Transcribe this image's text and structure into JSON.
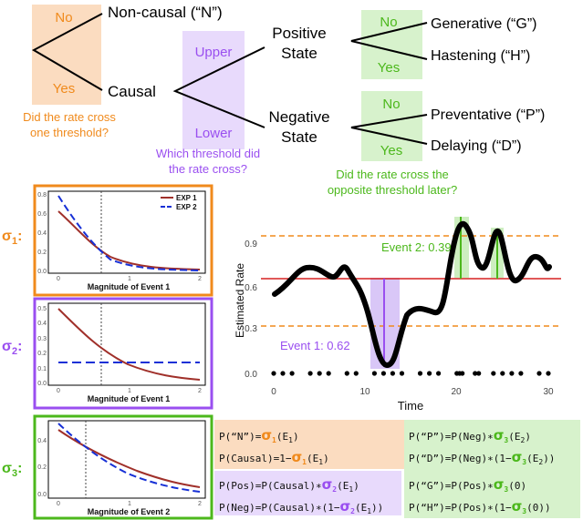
{
  "decision_tree": {
    "root": {
      "no": "No",
      "yes": "Yes",
      "question_l1": "Did the rate cross",
      "question_l2": "one threshold?"
    },
    "noncausal": "Non-causal (“N”)",
    "causal": "Causal",
    "which": {
      "upper": "Upper",
      "lower": "Lower",
      "question_l1": "Which threshold did",
      "question_l2": "the rate cross?"
    },
    "positive": {
      "l1": "Positive",
      "l2": "State"
    },
    "negative": {
      "l1": "Negative",
      "l2": "State"
    },
    "opposite": {
      "no_pos": "No",
      "yes_pos": "Yes",
      "no_neg": "No",
      "yes_neg": "Yes",
      "question_l1": "Did the rate cross the",
      "question_l2": "opposite threshold later?"
    },
    "outcomes": {
      "G": "Generative (“G”)",
      "H": "Hastening (“H”)",
      "P": "Preventative (“P”)",
      "D": "Delaying  (“D”)"
    }
  },
  "colors": {
    "orange": "#f08a1c",
    "purple": "#9a4ff0",
    "green": "#4cb81c",
    "exp1": "#a0302a",
    "exp2": "#1730d6"
  },
  "panels": [
    {
      "sigma": "σ",
      "sub": "1",
      "colon": ":",
      "xlabel": "Magnitude of Event 1",
      "legend": [
        "EXP 1",
        "EXP 2"
      ],
      "yticks": [
        "0.8",
        "0.6",
        "0.4",
        "0.2",
        "0.0"
      ],
      "xticks": [
        "0",
        "1",
        "2"
      ]
    },
    {
      "sigma": "σ",
      "sub": "2",
      "colon": ":",
      "xlabel": "Magnitude of Event 1",
      "yticks": [
        "0.5",
        "0.4",
        "0.3",
        "0.2",
        "0.1",
        "0.0"
      ],
      "xticks": [
        "0",
        "1",
        "2"
      ]
    },
    {
      "sigma": "σ",
      "sub": "3",
      "colon": ":",
      "xlabel": "Magnitude of Event 2",
      "yticks": [
        "0.4",
        "0.2",
        "0.0"
      ],
      "xticks": [
        "0",
        "1",
        "2"
      ]
    }
  ],
  "chart_data": [
    {
      "type": "line",
      "xlabel": "Magnitude of Event 1",
      "ylabel": "",
      "xlim": [
        -0.2,
        2.1
      ],
      "ylim": [
        0,
        0.85
      ],
      "vline": 0.62,
      "series": [
        {
          "name": "EXP 1",
          "x": [
            0,
            0.25,
            0.5,
            0.75,
            1,
            1.5,
            2
          ],
          "values": [
            0.62,
            0.45,
            0.32,
            0.18,
            0.09,
            0.03,
            0.01
          ]
        },
        {
          "name": "EXP 2",
          "x": [
            0,
            0.25,
            0.5,
            0.75,
            1,
            1.5,
            2
          ],
          "values": [
            0.78,
            0.52,
            0.3,
            0.12,
            0.05,
            0.01,
            0.0
          ]
        }
      ]
    },
    {
      "type": "line",
      "xlabel": "Magnitude of Event 1",
      "ylabel": "",
      "xlim": [
        -0.2,
        2.1
      ],
      "ylim": [
        0,
        0.55
      ],
      "vline": 0.62,
      "series": [
        {
          "values": [
            0.52,
            0.38,
            0.27,
            0.19,
            0.13,
            0.06,
            0.02
          ],
          "x": [
            0,
            0.25,
            0.5,
            0.75,
            1,
            1.5,
            2
          ]
        },
        {
          "values": [
            0.14,
            0.14,
            0.14,
            0.14,
            0.14,
            0.14,
            0.14
          ],
          "x": [
            0,
            0.25,
            0.5,
            0.75,
            1,
            1.5,
            2
          ]
        }
      ]
    },
    {
      "type": "line",
      "xlabel": "Magnitude of Event 2",
      "ylabel": "",
      "xlim": [
        -0.2,
        2.1
      ],
      "ylim": [
        0,
        0.5
      ],
      "vline": 0.39,
      "series": [
        {
          "values": [
            0.46,
            0.37,
            0.28,
            0.21,
            0.15,
            0.08,
            0.05
          ],
          "x": [
            0,
            0.25,
            0.5,
            0.75,
            1,
            1.5,
            2
          ]
        },
        {
          "values": [
            0.53,
            0.38,
            0.26,
            0.17,
            0.1,
            0.04,
            0.02
          ],
          "x": [
            0,
            0.25,
            0.5,
            0.75,
            1,
            1.5,
            2
          ]
        }
      ]
    },
    {
      "type": "line",
      "ylabel": "Estimated Rate",
      "xlabel": "Time",
      "xlim": [
        -1,
        31
      ],
      "ylim": [
        -0.05,
        1.13
      ],
      "xticks": [
        "0",
        "10",
        "20",
        "30"
      ],
      "yticks": [
        "0.0",
        "0.3",
        "0.6",
        "0.9"
      ],
      "thresholds": {
        "upper": 0.95,
        "lower": 0.33,
        "baseline": 0.65
      },
      "annotations": [
        {
          "text": "Event 2: 0.39"
        },
        {
          "text": "Event 1: 0.62"
        }
      ],
      "series": [
        {
          "x": [
            0,
            1,
            2,
            3,
            4,
            5,
            6,
            7,
            8,
            9,
            10,
            11,
            12,
            13,
            14,
            15,
            16,
            17,
            18,
            19,
            20,
            21,
            22,
            23,
            24,
            25,
            26,
            27,
            28,
            29,
            30
          ],
          "values": [
            0.55,
            0.58,
            0.66,
            0.73,
            0.72,
            0.64,
            0.6,
            0.66,
            0.64,
            0.52,
            0.34,
            0.08,
            0.02,
            0.2,
            0.44,
            0.46,
            0.45,
            0.47,
            0.64,
            0.9,
            1.06,
            0.9,
            0.72,
            0.83,
            1.0,
            0.82,
            0.68,
            0.74,
            0.76,
            0.71,
            0.74
          ]
        }
      ],
      "events": [
        0,
        1,
        2,
        4,
        5,
        6,
        8,
        9,
        11,
        12,
        13,
        14,
        16,
        17,
        18,
        20,
        20.3,
        20.6,
        22,
        22.4,
        24,
        25,
        26,
        27,
        29,
        30
      ]
    }
  ],
  "formulas": {
    "pN": [
      {
        "t": "P(“N”)="
      },
      {
        "t": "σ",
        "c": "orange"
      },
      {
        "t": "1",
        "c": "orange",
        "sub": true
      },
      {
        "t": "(E"
      },
      {
        "t": "1",
        "sub": true
      },
      {
        "t": ")"
      }
    ],
    "pCausal": [
      {
        "t": "P(Causal)=1−"
      },
      {
        "t": "σ",
        "c": "orange"
      },
      {
        "t": "1",
        "c": "orange",
        "sub": true
      },
      {
        "t": "(E"
      },
      {
        "t": "1",
        "sub": true
      },
      {
        "t": ")"
      }
    ],
    "pPos": [
      {
        "t": "P(Pos)=P(Causal)∗"
      },
      {
        "t": "σ",
        "c": "purple"
      },
      {
        "t": "2",
        "c": "purple",
        "sub": true
      },
      {
        "t": "(E"
      },
      {
        "t": "1",
        "sub": true
      },
      {
        "t": ")"
      }
    ],
    "pNeg": [
      {
        "t": "P(Neg)=P(Causal)∗(1−"
      },
      {
        "t": "σ",
        "c": "purple"
      },
      {
        "t": "2",
        "c": "purple",
        "sub": true
      },
      {
        "t": "(E"
      },
      {
        "t": "1",
        "sub": true
      },
      {
        "t": "))"
      }
    ],
    "pP": [
      {
        "t": "P(“P”)=P(Neg)∗"
      },
      {
        "t": "σ",
        "c": "green"
      },
      {
        "t": "3",
        "c": "green",
        "sub": true
      },
      {
        "t": "(E"
      },
      {
        "t": "2",
        "sub": true
      },
      {
        "t": ")"
      }
    ],
    "pD": [
      {
        "t": "P(“D”)=P(Neg)∗(1−"
      },
      {
        "t": "σ",
        "c": "green"
      },
      {
        "t": "3",
        "c": "green",
        "sub": true
      },
      {
        "t": "(E"
      },
      {
        "t": "2",
        "sub": true
      },
      {
        "t": "))"
      }
    ],
    "pG": [
      {
        "t": "P(“G”)=P(Pos)∗"
      },
      {
        "t": "σ",
        "c": "green"
      },
      {
        "t": "3",
        "c": "green",
        "sub": true
      },
      {
        "t": "(0)"
      }
    ],
    "pH": [
      {
        "t": "P(“H”)=P(Pos)∗(1−"
      },
      {
        "t": "σ",
        "c": "green"
      },
      {
        "t": "3",
        "c": "green",
        "sub": true
      },
      {
        "t": "(0))"
      }
    ]
  }
}
